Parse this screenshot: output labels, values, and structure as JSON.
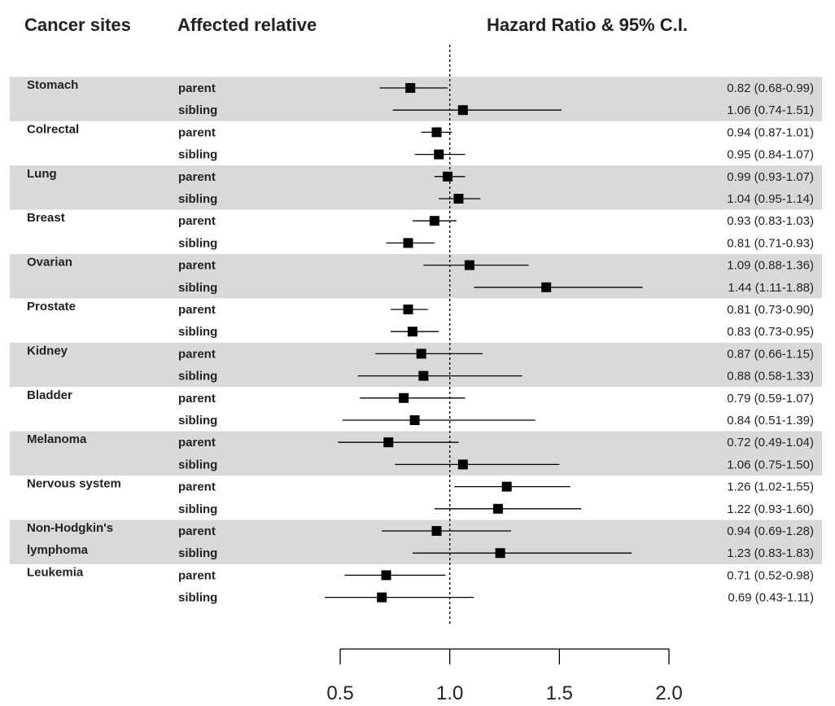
{
  "headers": {
    "sites": "Cancer sites",
    "relative": "Affected relative",
    "hr": "Hazard Ratio & 95% C.I."
  },
  "colors": {
    "band": "#d9d9d9",
    "marker": "#000000",
    "text": "#222222"
  },
  "chart_data": {
    "type": "forest",
    "reference_line": 1.0,
    "xlim": [
      0.5,
      2.0
    ],
    "xticks": [
      0.5,
      1.0,
      1.5,
      2.0
    ],
    "xtick_labels": [
      "0.5",
      "1.0",
      "1.5",
      "2.0"
    ],
    "groups": [
      {
        "site": "Stomach",
        "rows": [
          {
            "relative": "parent",
            "hr": 0.82,
            "lo": 0.68,
            "hi": 0.99,
            "label": "0.82 (0.68-0.99)"
          },
          {
            "relative": "sibling",
            "hr": 1.06,
            "lo": 0.74,
            "hi": 1.51,
            "label": "1.06 (0.74-1.51)"
          }
        ]
      },
      {
        "site": "Colrectal",
        "rows": [
          {
            "relative": "parent",
            "hr": 0.94,
            "lo": 0.87,
            "hi": 1.01,
            "label": "0.94 (0.87-1.01)"
          },
          {
            "relative": "sibling",
            "hr": 0.95,
            "lo": 0.84,
            "hi": 1.07,
            "label": "0.95 (0.84-1.07)"
          }
        ]
      },
      {
        "site": "Lung",
        "rows": [
          {
            "relative": "parent",
            "hr": 0.99,
            "lo": 0.93,
            "hi": 1.07,
            "label": "0.99 (0.93-1.07)"
          },
          {
            "relative": "sibling",
            "hr": 1.04,
            "lo": 0.95,
            "hi": 1.14,
            "label": "1.04 (0.95-1.14)"
          }
        ]
      },
      {
        "site": "Breast",
        "rows": [
          {
            "relative": "parent",
            "hr": 0.93,
            "lo": 0.83,
            "hi": 1.03,
            "label": "0.93 (0.83-1.03)"
          },
          {
            "relative": "sibling",
            "hr": 0.81,
            "lo": 0.71,
            "hi": 0.93,
            "label": "0.81 (0.71-0.93)"
          }
        ]
      },
      {
        "site": "Ovarian",
        "rows": [
          {
            "relative": "parent",
            "hr": 1.09,
            "lo": 0.88,
            "hi": 1.36,
            "label": "1.09 (0.88-1.36)"
          },
          {
            "relative": "sibling",
            "hr": 1.44,
            "lo": 1.11,
            "hi": 1.88,
            "label": "1.44 (1.11-1.88)"
          }
        ]
      },
      {
        "site": "Prostate",
        "rows": [
          {
            "relative": "parent",
            "hr": 0.81,
            "lo": 0.73,
            "hi": 0.9,
            "label": "0.81 (0.73-0.90)"
          },
          {
            "relative": "sibling",
            "hr": 0.83,
            "lo": 0.73,
            "hi": 0.95,
            "label": "0.83 (0.73-0.95)"
          }
        ]
      },
      {
        "site": "Kidney",
        "rows": [
          {
            "relative": "parent",
            "hr": 0.87,
            "lo": 0.66,
            "hi": 1.15,
            "label": "0.87 (0.66-1.15)"
          },
          {
            "relative": "sibling",
            "hr": 0.88,
            "lo": 0.58,
            "hi": 1.33,
            "label": "0.88 (0.58-1.33)"
          }
        ]
      },
      {
        "site": "Bladder",
        "rows": [
          {
            "relative": "parent",
            "hr": 0.79,
            "lo": 0.59,
            "hi": 1.07,
            "label": "0.79 (0.59-1.07)"
          },
          {
            "relative": "sibling",
            "hr": 0.84,
            "lo": 0.51,
            "hi": 1.39,
            "label": "0.84 (0.51-1.39)"
          }
        ]
      },
      {
        "site": "Melanoma",
        "rows": [
          {
            "relative": "parent",
            "hr": 0.72,
            "lo": 0.49,
            "hi": 1.04,
            "label": "0.72 (0.49-1.04)"
          },
          {
            "relative": "sibling",
            "hr": 1.06,
            "lo": 0.75,
            "hi": 1.5,
            "label": "1.06 (0.75-1.50)"
          }
        ]
      },
      {
        "site": "Nervous system",
        "rows": [
          {
            "relative": "parent",
            "hr": 1.26,
            "lo": 1.02,
            "hi": 1.55,
            "label": "1.26 (1.02-1.55)"
          },
          {
            "relative": "sibling",
            "hr": 1.22,
            "lo": 0.93,
            "hi": 1.6,
            "label": "1.22 (0.93-1.60)"
          }
        ]
      },
      {
        "site": "Non-Hodgkin's\nlymphoma",
        "rows": [
          {
            "relative": "parent",
            "hr": 0.94,
            "lo": 0.69,
            "hi": 1.28,
            "label": "0.94 (0.69-1.28)"
          },
          {
            "relative": "sibling",
            "hr": 1.23,
            "lo": 0.83,
            "hi": 1.83,
            "label": "1.23 (0.83-1.83)"
          }
        ]
      },
      {
        "site": "Leukemia",
        "rows": [
          {
            "relative": "parent",
            "hr": 0.71,
            "lo": 0.52,
            "hi": 0.98,
            "label": "0.71 (0.52-0.98)"
          },
          {
            "relative": "sibling",
            "hr": 0.69,
            "lo": 0.43,
            "hi": 1.11,
            "label": "0.69 (0.43-1.11)"
          }
        ]
      }
    ]
  }
}
